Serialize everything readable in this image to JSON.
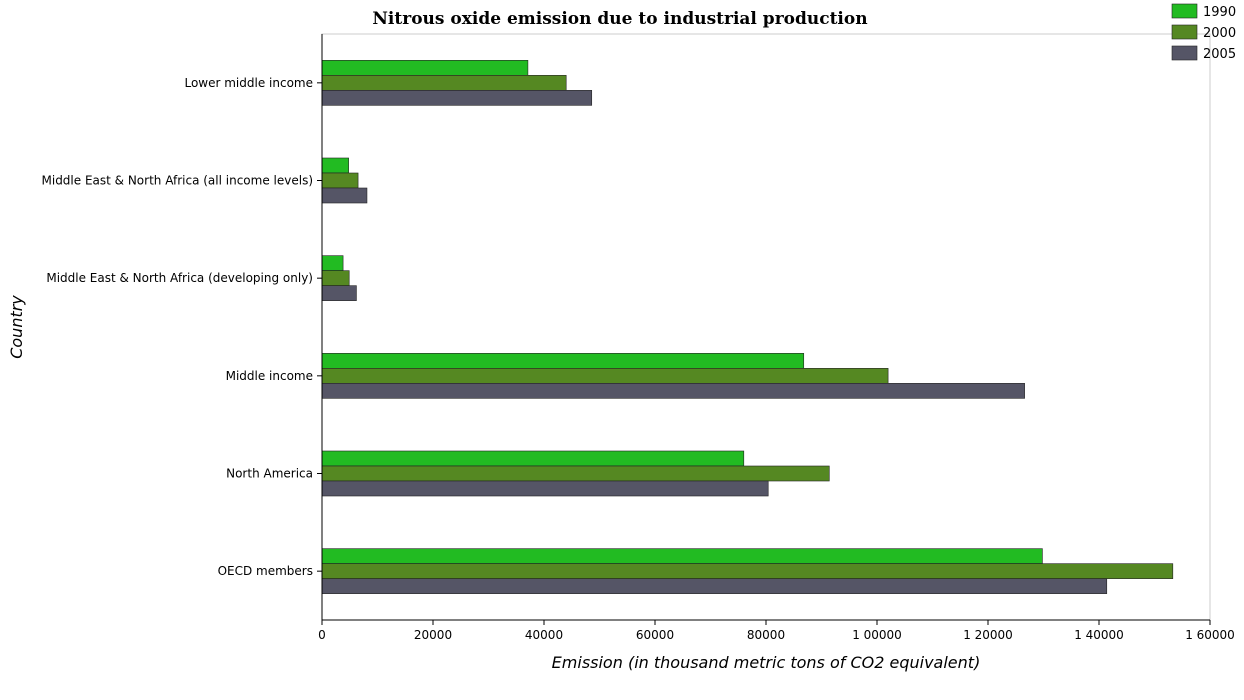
{
  "chart_data": {
    "type": "bar",
    "orientation": "horizontal",
    "title": "Nitrous oxide emission due to industrial production",
    "xlabel": "Emission (in thousand metric tons of CO2 equivalent)",
    "ylabel": "Country",
    "xlim": [
      0,
      160000
    ],
    "x_ticks": [
      0,
      20000,
      40000,
      60000,
      80000,
      100000,
      120000,
      140000,
      160000
    ],
    "x_tick_labels": [
      "0",
      "20000",
      "40000",
      "60000",
      "80000",
      "1 00000",
      "1 20000",
      "1 40000",
      "1 60000"
    ],
    "categories": [
      "Lower middle income",
      "Middle East & North Africa (all income levels)",
      "Middle East & North Africa (developing only)",
      "Middle income",
      "North America",
      "OECD members"
    ],
    "series": [
      {
        "name": "1990",
        "color": "#22bb22",
        "values": [
          37100,
          4800,
          3800,
          86800,
          76000,
          129800
        ]
      },
      {
        "name": "2000",
        "color": "#558822",
        "values": [
          44000,
          6500,
          4900,
          102000,
          91400,
          153300
        ]
      },
      {
        "name": "2005",
        "color": "#555566",
        "values": [
          48600,
          8100,
          6200,
          126600,
          80400,
          141400
        ]
      }
    ],
    "grid": false,
    "legend_position": "top-right"
  }
}
